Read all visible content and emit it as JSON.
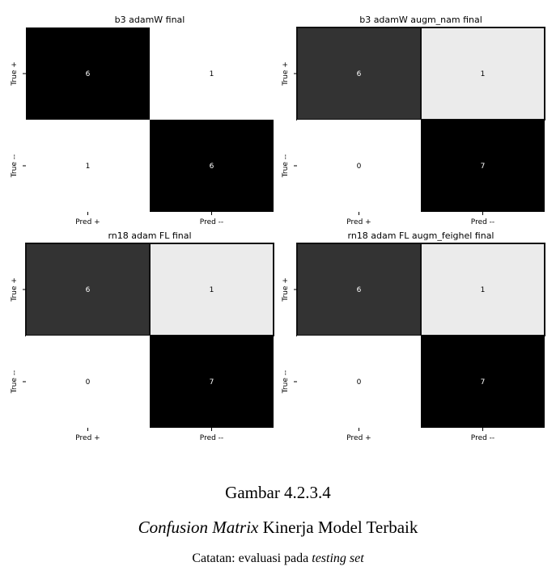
{
  "chart_data": [
    {
      "type": "heatmap",
      "title": "b3 adamW final",
      "row_labels": [
        "True +",
        "True --"
      ],
      "col_labels": [
        "Pred +",
        "Pred --"
      ],
      "values": [
        [
          6,
          1
        ],
        [
          1,
          6
        ]
      ],
      "cell_colors": [
        [
          "#000000",
          "#ffffff"
        ],
        [
          "#ffffff",
          "#000000"
        ]
      ]
    },
    {
      "type": "heatmap",
      "title": "b3 adamW augm_nam final",
      "row_labels": [
        "True +",
        "True --"
      ],
      "col_labels": [
        "Pred +",
        "Pred --"
      ],
      "values": [
        [
          6,
          1
        ],
        [
          0,
          7
        ]
      ],
      "cell_colors": [
        [
          "#333333",
          "#ebebeb"
        ],
        [
          "#ffffff",
          "#000000"
        ]
      ]
    },
    {
      "type": "heatmap",
      "title": "rn18 adam FL final",
      "row_labels": [
        "True +",
        "True --"
      ],
      "col_labels": [
        "Pred +",
        "Pred --"
      ],
      "values": [
        [
          6,
          1
        ],
        [
          0,
          7
        ]
      ],
      "cell_colors": [
        [
          "#333333",
          "#ebebeb"
        ],
        [
          "#ffffff",
          "#000000"
        ]
      ]
    },
    {
      "type": "heatmap",
      "title": "rn18 adam FL augm_feighel final",
      "row_labels": [
        "True +",
        "True --"
      ],
      "col_labels": [
        "Pred +",
        "Pred --"
      ],
      "values": [
        [
          6,
          1
        ],
        [
          0,
          7
        ]
      ],
      "cell_colors": [
        [
          "#333333",
          "#ebebeb"
        ],
        [
          "#ffffff",
          "#000000"
        ]
      ]
    }
  ],
  "caption": {
    "number": "Gambar 4.2.3.4",
    "title_italic": "Confusion Matrix",
    "title_rest": " Kinerja Model Terbaik",
    "note_prefix": "Catatan: evaluasi pada ",
    "note_italic": "testing set"
  }
}
